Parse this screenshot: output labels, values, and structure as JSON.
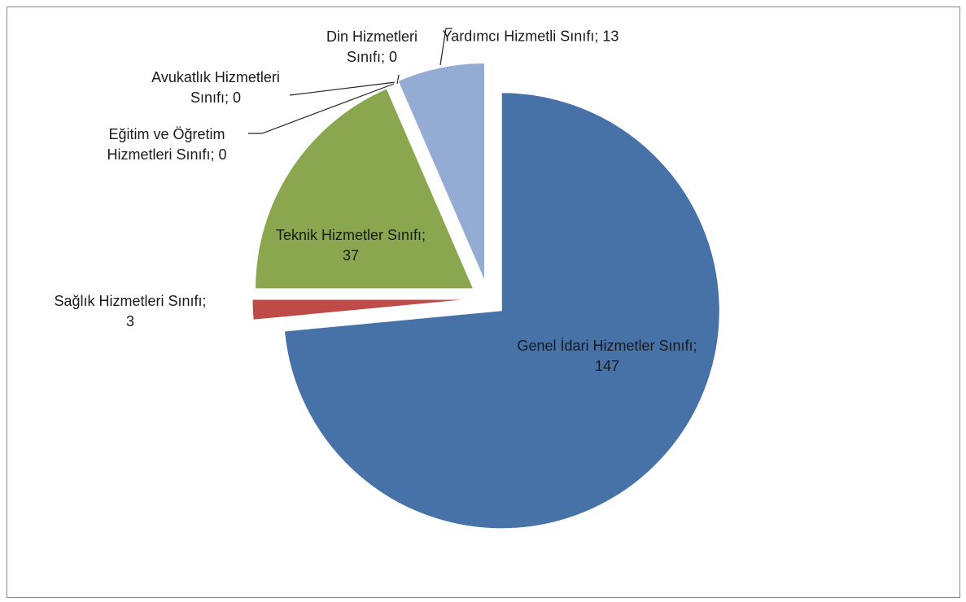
{
  "chart_data": {
    "type": "pie",
    "categories": [
      "Genel İdari Hizmetler Sınıfı",
      "Sağlık Hizmetleri Sınıfı",
      "Teknik Hizmetler Sınıfı",
      "Eğitim ve Öğretim Hizmetleri Sınıfı",
      "Avukatlık Hizmetleri Sınıfı",
      "Din Hizmetleri Sınıfı",
      "Yardımcı Hizmetli Sınıfı"
    ],
    "values": [
      147,
      3,
      37,
      0,
      0,
      0,
      13
    ],
    "colors": [
      "#4672a8",
      "#be4b48",
      "#8aa64e",
      "#7d5fa0",
      "#4bacc6",
      "#f79646",
      "#94abd3"
    ],
    "label_separator": "; "
  }
}
